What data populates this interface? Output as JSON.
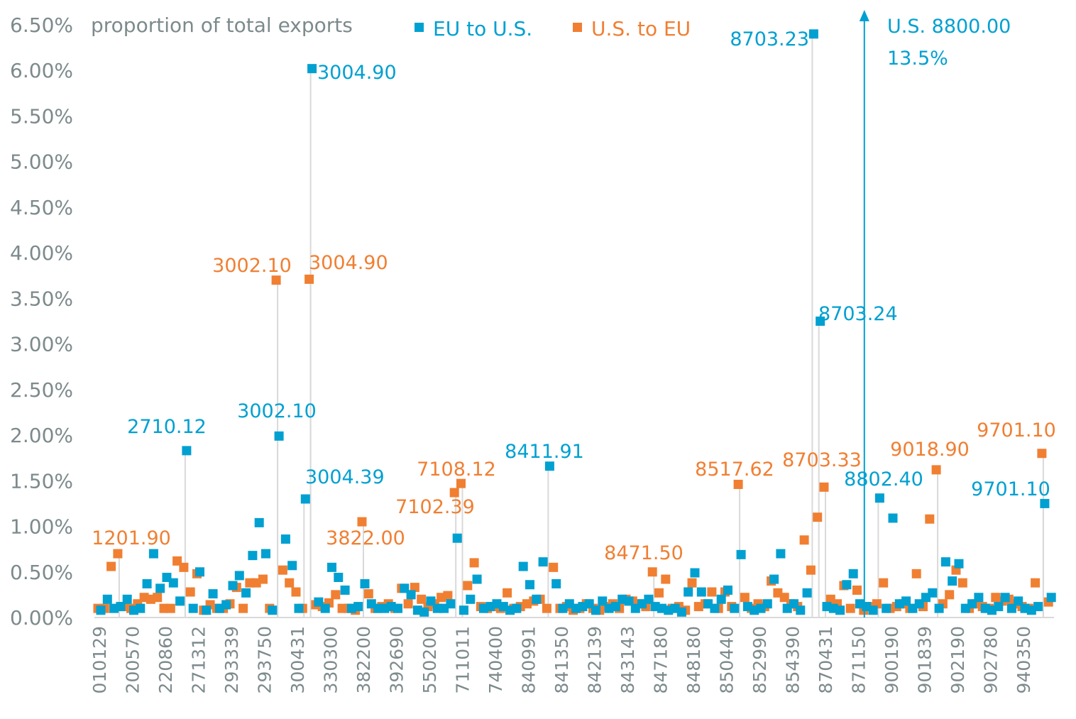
{
  "chart_data": {
    "type": "scatter",
    "title": "proportion of total exports",
    "xlabel": "",
    "ylabel": "",
    "ylim": [
      0,
      6.5
    ],
    "y_ticks": [
      "0.00%",
      "0.50%",
      "1.00%",
      "1.50%",
      "2.00%",
      "2.50%",
      "3.00%",
      "3.50%",
      "4.00%",
      "4.50%",
      "5.00%",
      "5.50%",
      "6.00%",
      "6.50%"
    ],
    "x_tick_labels": [
      "010129",
      "200570",
      "220860",
      "271312",
      "293339",
      "293750",
      "300431",
      "330300",
      "382200",
      "392690",
      "550200",
      "711011",
      "740400",
      "840991",
      "841350",
      "842139",
      "843143",
      "847180",
      "848180",
      "850440",
      "852990",
      "854390",
      "870431",
      "871150",
      "900190",
      "901839",
      "902190",
      "902780",
      "940350"
    ],
    "x_tick_every": 5,
    "grid": false,
    "legend": {
      "position": "top",
      "entries": [
        {
          "name": "EU to U.S.",
          "color": "#00a0d1"
        },
        {
          "name": "U.S. to EU",
          "color": "#f07f32"
        }
      ]
    },
    "series": [
      {
        "name": "EU to U.S.",
        "color": "#00a0d1",
        "values": [
          0.08,
          0.2,
          0.1,
          0.12,
          0.2,
          0.08,
          0.1,
          0.37,
          0.7,
          0.32,
          0.44,
          0.38,
          0.18,
          1.83,
          0.1,
          0.5,
          0.08,
          0.26,
          0.1,
          0.14,
          0.35,
          0.46,
          0.27,
          0.68,
          1.04,
          0.7,
          0.08,
          1.99,
          0.86,
          0.57,
          0.1,
          1.3,
          6.02,
          0.17,
          0.1,
          0.55,
          0.44,
          0.3,
          0.1,
          0.12,
          0.37,
          0.15,
          0.1,
          0.1,
          0.12,
          0.1,
          0.32,
          0.25,
          0.08,
          0.06,
          0.18,
          0.1,
          0.1,
          0.15,
          0.87,
          0.08,
          0.2,
          0.42,
          0.1,
          0.12,
          0.15,
          0.12,
          0.08,
          0.1,
          0.56,
          0.36,
          0.2,
          0.61,
          1.66,
          0.37,
          0.1,
          0.15,
          0.1,
          0.12,
          0.15,
          0.08,
          0.18,
          0.1,
          0.12,
          0.2,
          0.18,
          0.1,
          0.15,
          0.2,
          0.12,
          0.1,
          0.08,
          0.1,
          0.06,
          0.28,
          0.49,
          0.28,
          0.15,
          0.1,
          0.2,
          0.3,
          0.1,
          0.69,
          0.12,
          0.08,
          0.1,
          0.15,
          0.42,
          0.7,
          0.1,
          0.15,
          0.08,
          0.27,
          6.4,
          3.25,
          0.12,
          0.1,
          0.08,
          0.36,
          0.48,
          0.15,
          0.12,
          0.08,
          1.31,
          0.1,
          1.09,
          0.15,
          0.18,
          0.1,
          0.15,
          0.22,
          0.27,
          0.1,
          0.61,
          0.4,
          0.59,
          0.1,
          0.15,
          0.22,
          0.1,
          0.08,
          0.12,
          0.22,
          0.1,
          0.18,
          0.1,
          0.08,
          0.12,
          1.25,
          0.22
        ]
      },
      {
        "name": "U.S. to EU",
        "color": "#f07f32",
        "values": [
          0.1,
          0.1,
          0.56,
          0.7,
          0.12,
          0.1,
          0.15,
          0.22,
          0.2,
          0.22,
          0.1,
          0.1,
          0.62,
          0.55,
          0.28,
          0.48,
          0.08,
          0.14,
          0.1,
          0.1,
          0.15,
          0.33,
          0.1,
          0.38,
          0.38,
          0.42,
          0.1,
          3.7,
          0.52,
          0.38,
          0.28,
          0.1,
          3.71,
          0.14,
          0.12,
          0.16,
          0.25,
          0.1,
          0.1,
          0.08,
          1.05,
          0.26,
          0.1,
          0.12,
          0.15,
          0.1,
          0.32,
          0.15,
          0.33,
          0.2,
          0.12,
          0.15,
          0.22,
          0.24,
          1.37,
          1.47,
          0.35,
          0.6,
          0.12,
          0.1,
          0.12,
          0.1,
          0.27,
          0.1,
          0.12,
          0.15,
          0.18,
          0.2,
          0.1,
          0.55,
          0.1,
          0.12,
          0.08,
          0.1,
          0.15,
          0.1,
          0.08,
          0.12,
          0.15,
          0.1,
          0.2,
          0.18,
          0.15,
          0.12,
          0.5,
          0.27,
          0.42,
          0.1,
          0.12,
          0.08,
          0.38,
          0.12,
          0.15,
          0.28,
          0.1,
          0.28,
          0.12,
          1.46,
          0.22,
          0.1,
          0.15,
          0.12,
          0.4,
          0.27,
          0.22,
          0.15,
          0.12,
          0.85,
          0.52,
          1.1,
          1.43,
          0.2,
          0.15,
          0.35,
          0.1,
          0.3,
          0.08,
          0.12,
          0.15,
          0.38,
          0.1,
          0.12,
          0.15,
          0.1,
          0.48,
          0.12,
          1.08,
          1.62,
          0.15,
          0.25,
          0.52,
          0.38,
          0.1,
          0.15,
          0.12,
          0.1,
          0.22,
          0.18,
          0.2,
          0.15,
          0.12,
          0.1,
          0.38,
          1.8,
          0.17
        ]
      }
    ],
    "annotations": [
      {
        "series": 0,
        "index": 13,
        "text": "2710.12"
      },
      {
        "series": 0,
        "index": 27,
        "text": "3002.10"
      },
      {
        "series": 1,
        "index": 27,
        "text": "3002.10"
      },
      {
        "series": 0,
        "index": 32,
        "text": "3004.90"
      },
      {
        "series": 1,
        "index": 32,
        "text": "3004.90"
      },
      {
        "series": 0,
        "index": 31,
        "text": "3004.39"
      },
      {
        "series": 1,
        "index": 3,
        "text": "1201.90"
      },
      {
        "series": 1,
        "index": 40,
        "text": "3822.00"
      },
      {
        "series": 1,
        "index": 55,
        "text": "7108.12"
      },
      {
        "series": 1,
        "index": 54,
        "text": "7102.39"
      },
      {
        "series": 0,
        "index": 68,
        "text": "8411.91"
      },
      {
        "series": 1,
        "index": 84,
        "text": "8471.50"
      },
      {
        "series": 1,
        "index": 97,
        "text": "8517.62"
      },
      {
        "series": 0,
        "index": 108,
        "text": "8703.23"
      },
      {
        "series": 0,
        "index": 109,
        "text": "8703.24"
      },
      {
        "series": 1,
        "index": 110,
        "text": "8703.33"
      },
      {
        "series": 0,
        "index": 118,
        "text": "8802.40"
      },
      {
        "series": 1,
        "index": 127,
        "text": "9018.90"
      },
      {
        "series": 1,
        "index": 143,
        "text": "9701.10"
      },
      {
        "series": 0,
        "index": 143,
        "text": "9701.10"
      }
    ],
    "offscale": {
      "series": 0,
      "index": 116,
      "label": "U.S. 8800.00",
      "value_label": "13.5%",
      "value": 13.5
    }
  }
}
